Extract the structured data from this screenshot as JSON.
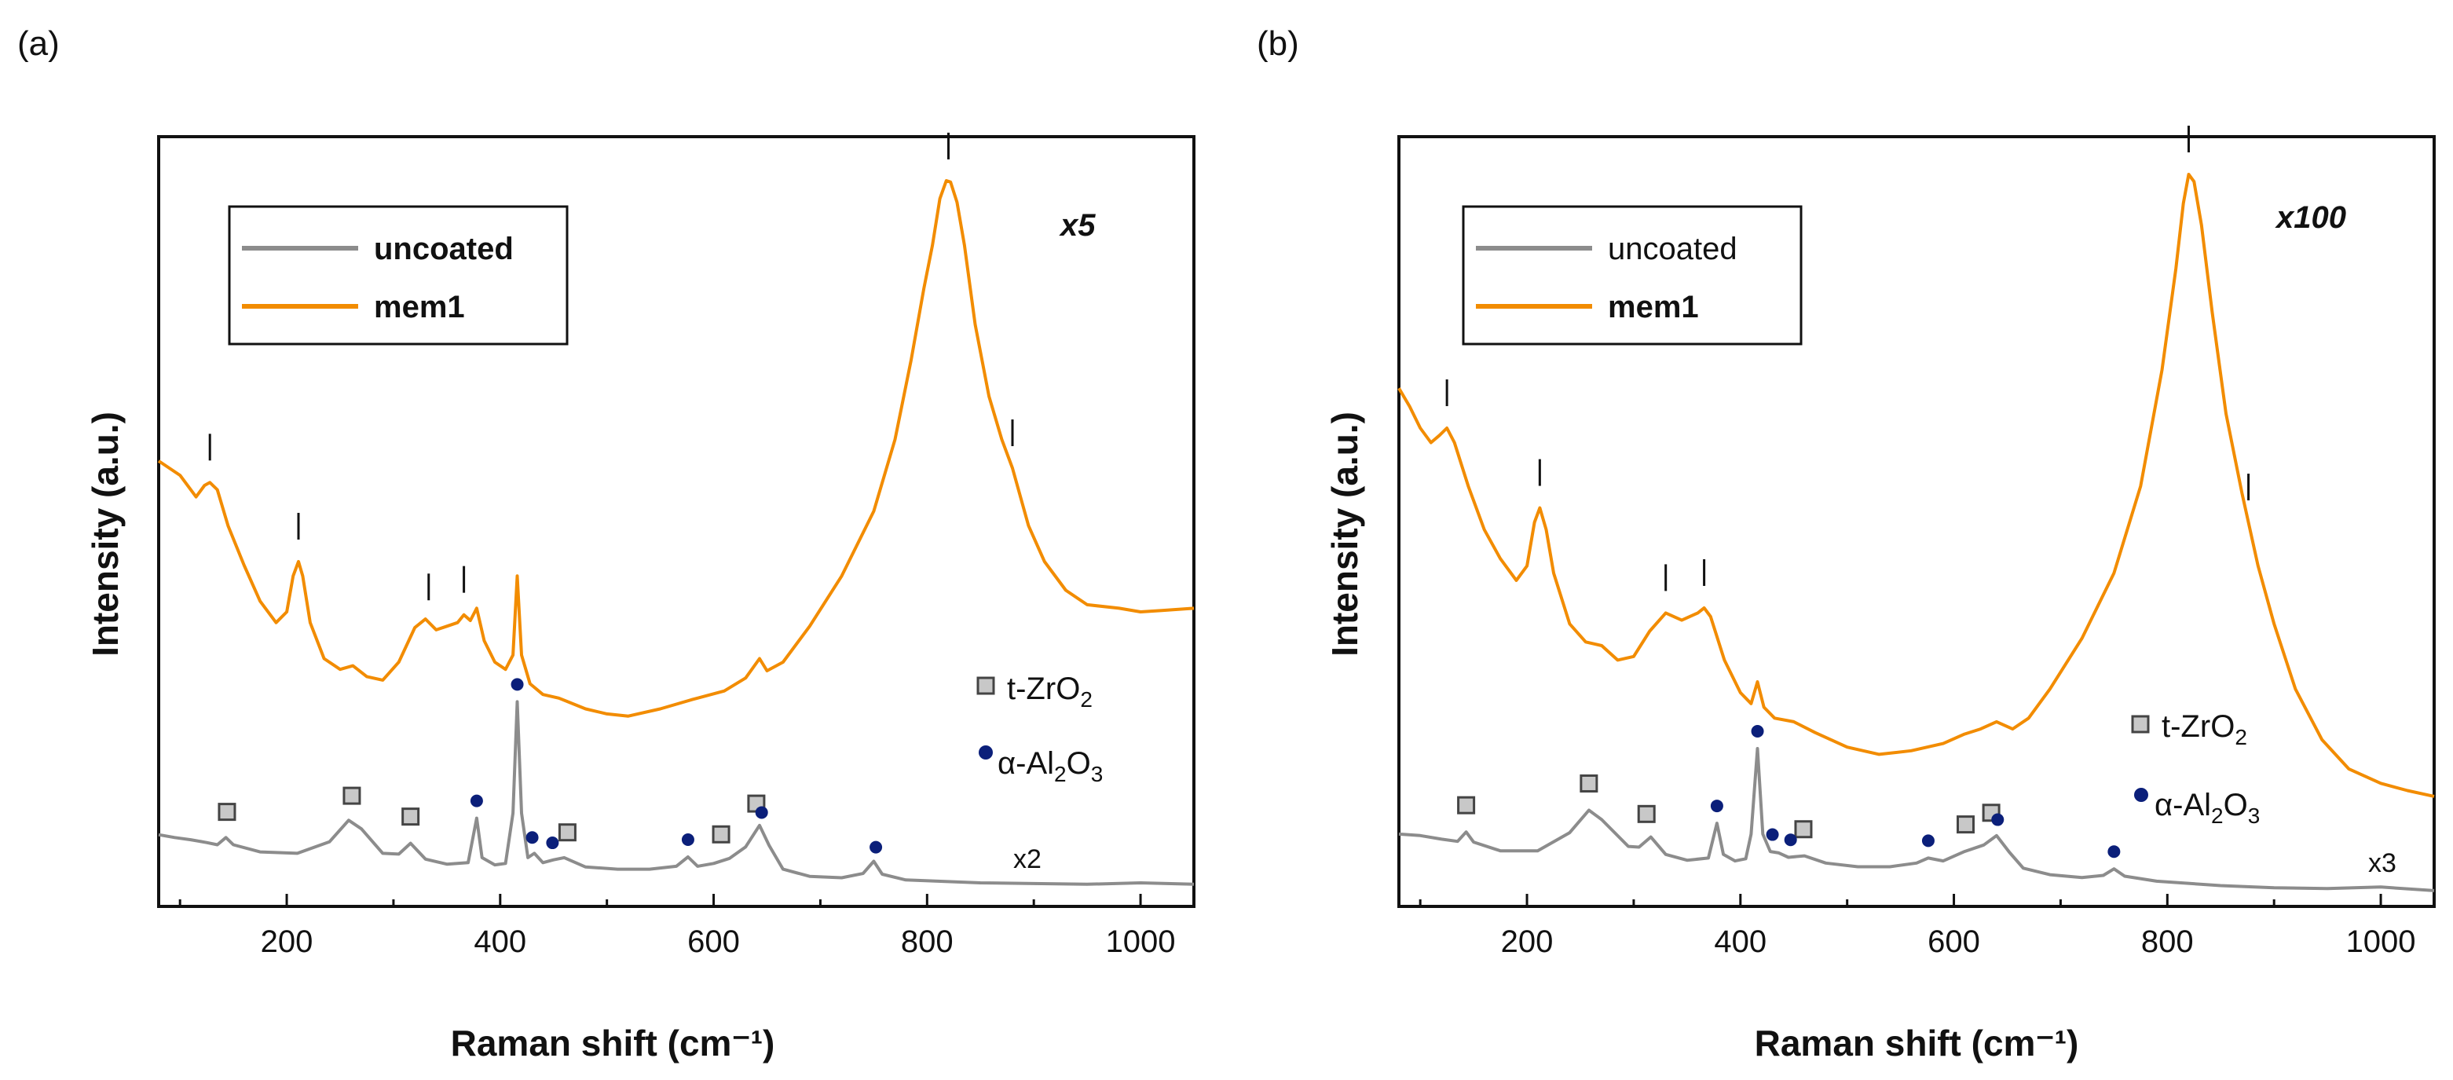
{
  "chart_data": [
    {
      "type": "line",
      "panel": "(a)",
      "xlabel": "Raman shift (cm⁻¹)",
      "ylabel": "Intensity (a.u.)",
      "xlim": [
        80,
        1050
      ],
      "ylim": [
        0,
        100
      ],
      "xticks": [
        200,
        400,
        600,
        800,
        1000
      ],
      "scale_label": "x5",
      "multiplier_label": "x2",
      "legend_bold_uncoated": true,
      "series": [
        {
          "name": "uncoated",
          "color": "#8c8c8c",
          "points": [
            [
              80,
              9
            ],
            [
              95,
              8.6
            ],
            [
              110,
              8.3
            ],
            [
              125,
              7.9
            ],
            [
              135,
              7.6
            ],
            [
              143,
              8.6
            ],
            [
              150,
              7.6
            ],
            [
              175,
              6.6
            ],
            [
              210,
              6.4
            ],
            [
              240,
              8.0
            ],
            [
              258,
              11.0
            ],
            [
              270,
              9.8
            ],
            [
              290,
              6.4
            ],
            [
              305,
              6.3
            ],
            [
              316,
              7.8
            ],
            [
              330,
              5.6
            ],
            [
              350,
              4.9
            ],
            [
              370,
              5.1
            ],
            [
              378,
              11.3
            ],
            [
              383,
              5.8
            ],
            [
              395,
              4.8
            ],
            [
              405,
              5.0
            ],
            [
              412,
              12
            ],
            [
              416,
              27.5
            ],
            [
              420,
              12
            ],
            [
              426,
              5.8
            ],
            [
              432,
              6.4
            ],
            [
              440,
              5.1
            ],
            [
              450,
              5.5
            ],
            [
              460,
              5.8
            ],
            [
              480,
              4.5
            ],
            [
              510,
              4.2
            ],
            [
              540,
              4.2
            ],
            [
              565,
              4.6
            ],
            [
              576,
              5.9
            ],
            [
              585,
              4.6
            ],
            [
              600,
              5.0
            ],
            [
              615,
              5.7
            ],
            [
              630,
              7.3
            ],
            [
              643,
              10.3
            ],
            [
              652,
              7.5
            ],
            [
              665,
              4.2
            ],
            [
              690,
              3.2
            ],
            [
              720,
              3.0
            ],
            [
              740,
              3.6
            ],
            [
              750,
              5.3
            ],
            [
              758,
              3.5
            ],
            [
              780,
              2.7
            ],
            [
              850,
              2.3
            ],
            [
              900,
              2.2
            ],
            [
              950,
              2.1
            ],
            [
              1000,
              2.3
            ],
            [
              1050,
              2.1
            ]
          ]
        },
        {
          "name": "mem1",
          "color": "#f28c00",
          "points": [
            [
              80,
              61
            ],
            [
              100,
              59
            ],
            [
              115,
              56
            ],
            [
              123,
              57.6
            ],
            [
              128,
              58
            ],
            [
              135,
              57
            ],
            [
              145,
              52
            ],
            [
              160,
              46.5
            ],
            [
              175,
              41.5
            ],
            [
              190,
              38.5
            ],
            [
              200,
              40
            ],
            [
              206,
              45
            ],
            [
              211,
              47
            ],
            [
              215,
              45
            ],
            [
              222,
              38.5
            ],
            [
              235,
              33.5
            ],
            [
              250,
              32
            ],
            [
              262,
              32.5
            ],
            [
              275,
              31
            ],
            [
              290,
              30.5
            ],
            [
              305,
              33
            ],
            [
              320,
              37.8
            ],
            [
              330,
              39
            ],
            [
              340,
              37.5
            ],
            [
              350,
              38
            ],
            [
              360,
              38.5
            ],
            [
              366,
              39.6
            ],
            [
              372,
              38.8
            ],
            [
              378,
              40.5
            ],
            [
              385,
              36
            ],
            [
              395,
              33
            ],
            [
              405,
              32
            ],
            [
              412,
              34
            ],
            [
              416,
              45
            ],
            [
              420,
              34
            ],
            [
              428,
              30
            ],
            [
              440,
              28.5
            ],
            [
              455,
              28
            ],
            [
              480,
              26.5
            ],
            [
              500,
              25.8
            ],
            [
              520,
              25.5
            ],
            [
              550,
              26.5
            ],
            [
              580,
              27.8
            ],
            [
              610,
              29
            ],
            [
              630,
              30.8
            ],
            [
              643,
              33.5
            ],
            [
              650,
              31.8
            ],
            [
              665,
              33
            ],
            [
              690,
              38
            ],
            [
              720,
              45
            ],
            [
              750,
              54
            ],
            [
              770,
              64
            ],
            [
              785,
              75
            ],
            [
              797,
              85
            ],
            [
              805,
              91
            ],
            [
              812,
              97.5
            ],
            [
              818,
              100
            ],
            [
              822,
              99.8
            ],
            [
              828,
              97
            ],
            [
              835,
              91
            ],
            [
              845,
              80
            ],
            [
              858,
              70
            ],
            [
              870,
              64
            ],
            [
              880,
              60
            ],
            [
              895,
              52
            ],
            [
              910,
              47
            ],
            [
              930,
              43
            ],
            [
              950,
              41
            ],
            [
              980,
              40.5
            ],
            [
              1000,
              40
            ],
            [
              1020,
              40.2
            ],
            [
              1050,
              40.5
            ]
          ]
        }
      ],
      "peak_markers": [
        128,
        211,
        333,
        366,
        820,
        880
      ],
      "phase_markers": {
        "t_ZrO2": [
          144,
          261,
          316,
          463,
          607,
          640
        ],
        "alpha_Al2O3": [
          378,
          416,
          430,
          449,
          576,
          645,
          752
        ]
      },
      "legend": {
        "labels": [
          "uncoated",
          "mem1"
        ]
      },
      "phase_legend": {
        "t_ZrO2": "t-ZrO",
        "t_ZrO2_sub": "2",
        "alpha_Al2O3_pre": "α-Al",
        "alpha_Al2O3_sub1": "2",
        "alpha_Al2O3_mid": "O",
        "alpha_Al2O3_sub2": "3"
      }
    },
    {
      "type": "line",
      "panel": "(b)",
      "xlabel": "Raman shift (cm⁻¹)",
      "ylabel": "Intensity (a.u.)",
      "xlim": [
        80,
        1050
      ],
      "ylim": [
        0,
        100
      ],
      "xticks": [
        200,
        400,
        600,
        800,
        1000
      ],
      "scale_label": "x100",
      "multiplier_label": "x3",
      "legend_bold_uncoated": false,
      "series": [
        {
          "name": "uncoated",
          "color": "#8c8c8c",
          "points": [
            [
              80,
              9
            ],
            [
              100,
              8.8
            ],
            [
              120,
              8.3
            ],
            [
              135,
              8.0
            ],
            [
              143,
              9.3
            ],
            [
              150,
              7.9
            ],
            [
              175,
              6.7
            ],
            [
              210,
              6.7
            ],
            [
              240,
              9.2
            ],
            [
              258,
              12.3
            ],
            [
              270,
              11
            ],
            [
              295,
              7.3
            ],
            [
              305,
              7.2
            ],
            [
              316,
              8.6
            ],
            [
              330,
              6.2
            ],
            [
              350,
              5.4
            ],
            [
              370,
              5.7
            ],
            [
              378,
              10.5
            ],
            [
              384,
              6.2
            ],
            [
              395,
              5.3
            ],
            [
              405,
              5.6
            ],
            [
              410,
              9
            ],
            [
              416,
              20.8
            ],
            [
              421,
              9
            ],
            [
              428,
              6.6
            ],
            [
              436,
              6.4
            ],
            [
              445,
              5.8
            ],
            [
              460,
              6.0
            ],
            [
              480,
              5.0
            ],
            [
              510,
              4.5
            ],
            [
              540,
              4.5
            ],
            [
              565,
              5.0
            ],
            [
              576,
              5.7
            ],
            [
              590,
              5.3
            ],
            [
              610,
              6.6
            ],
            [
              628,
              7.5
            ],
            [
              640,
              8.8
            ],
            [
              652,
              6.5
            ],
            [
              665,
              4.3
            ],
            [
              690,
              3.4
            ],
            [
              720,
              3.0
            ],
            [
              740,
              3.3
            ],
            [
              750,
              4.2
            ],
            [
              760,
              3.2
            ],
            [
              790,
              2.5
            ],
            [
              850,
              1.9
            ],
            [
              900,
              1.6
            ],
            [
              950,
              1.5
            ],
            [
              1000,
              1.7
            ],
            [
              1050,
              1.2
            ]
          ]
        },
        {
          "name": "mem1",
          "color": "#f28c00",
          "points": [
            [
              80,
              70.5
            ],
            [
              90,
              68
            ],
            [
              100,
              65
            ],
            [
              110,
              63
            ],
            [
              118,
              64
            ],
            [
              125,
              65
            ],
            [
              132,
              63
            ],
            [
              145,
              57
            ],
            [
              160,
              51
            ],
            [
              175,
              47
            ],
            [
              190,
              44
            ],
            [
              200,
              46
            ],
            [
              207,
              52
            ],
            [
              212,
              54
            ],
            [
              218,
              51
            ],
            [
              225,
              45
            ],
            [
              240,
              38
            ],
            [
              255,
              35.5
            ],
            [
              270,
              35
            ],
            [
              285,
              33
            ],
            [
              300,
              33.5
            ],
            [
              315,
              37
            ],
            [
              330,
              39.5
            ],
            [
              345,
              38.5
            ],
            [
              360,
              39.5
            ],
            [
              366,
              40.2
            ],
            [
              372,
              39
            ],
            [
              385,
              33
            ],
            [
              400,
              28.5
            ],
            [
              410,
              27
            ],
            [
              416,
              30
            ],
            [
              422,
              26.5
            ],
            [
              432,
              25
            ],
            [
              450,
              24.5
            ],
            [
              470,
              23
            ],
            [
              500,
              21
            ],
            [
              530,
              20
            ],
            [
              560,
              20.5
            ],
            [
              590,
              21.5
            ],
            [
              610,
              22.8
            ],
            [
              625,
              23.5
            ],
            [
              640,
              24.5
            ],
            [
              655,
              23.5
            ],
            [
              670,
              25
            ],
            [
              690,
              29
            ],
            [
              720,
              36
            ],
            [
              750,
              45
            ],
            [
              775,
              57
            ],
            [
              795,
              73
            ],
            [
              808,
              87
            ],
            [
              815,
              96
            ],
            [
              820,
              100
            ],
            [
              825,
              99
            ],
            [
              832,
              93
            ],
            [
              842,
              81
            ],
            [
              855,
              67
            ],
            [
              870,
              56
            ],
            [
              885,
              46
            ],
            [
              900,
              38
            ],
            [
              920,
              29
            ],
            [
              945,
              22
            ],
            [
              970,
              18
            ],
            [
              1000,
              16
            ],
            [
              1025,
              15
            ],
            [
              1050,
              14.2
            ]
          ]
        }
      ],
      "peak_markers": [
        125,
        212,
        330,
        366,
        820,
        876
      ],
      "phase_markers": {
        "t_ZrO2": [
          143,
          258,
          312,
          459,
          611,
          635
        ],
        "alpha_Al2O3": [
          378,
          416,
          430,
          447,
          576,
          641,
          750
        ]
      },
      "legend": {
        "labels": [
          "uncoated",
          "mem1"
        ]
      },
      "phase_legend": {
        "t_ZrO2": "t-ZrO",
        "t_ZrO2_sub": "2",
        "alpha_Al2O3_pre": "α-Al",
        "alpha_Al2O3_sub1": "2",
        "alpha_Al2O3_mid": "O",
        "alpha_Al2O3_sub2": "3"
      }
    }
  ]
}
